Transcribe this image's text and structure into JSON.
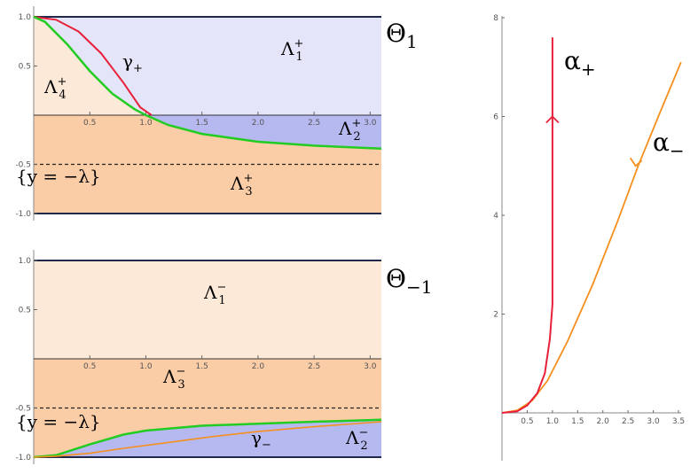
{
  "colors": {
    "region_lavender": "#e4e5f8",
    "region_peach_light": "#fde9d8",
    "region_peach": "#fbcda6",
    "region_blue": "#b6b8f0",
    "curve_red": "#e8203a",
    "curve_green": "#22cc22",
    "curve_orange": "#f5901e",
    "axis": "#888888",
    "boundary": "#20294a"
  },
  "labels": {
    "theta_plus": {
      "base": "Θ",
      "sub": "1"
    },
    "theta_minus": {
      "base": "Θ",
      "sub": "−1"
    },
    "alpha_plus": {
      "base": "α",
      "sub": "+"
    },
    "alpha_minus": {
      "base": "α",
      "sub": "−"
    },
    "gamma_plus": {
      "base": "γ",
      "sub": "+"
    },
    "gamma_minus": {
      "base": "γ",
      "sub": "−"
    },
    "lambda1_plus": {
      "base": "Λ",
      "sub": "1",
      "sup": "+"
    },
    "lambda2_plus": {
      "base": "Λ",
      "sub": "2",
      "sup": "+"
    },
    "lambda3_plus": {
      "base": "Λ",
      "sub": "3",
      "sup": "+"
    },
    "lambda4_plus": {
      "base": "Λ",
      "sub": "4",
      "sup": "+"
    },
    "lambda1_minus": {
      "base": "Λ",
      "sub": "1",
      "sup": "−"
    },
    "lambda2_minus": {
      "base": "Λ",
      "sub": "2",
      "sup": "−"
    },
    "lambda3_minus": {
      "base": "Λ",
      "sub": "3",
      "sup": "−"
    },
    "y_line_top": "{y = −λ}",
    "y_line_bottom": "{y = −λ}"
  },
  "chart_data": [
    {
      "type": "area",
      "panel": "top-left",
      "xlim": [
        0,
        3.1
      ],
      "ylim": [
        -1,
        1
      ],
      "x_ticks": [
        "0.5",
        "1.0",
        "1.5",
        "2.0",
        "2.5",
        "3.0"
      ],
      "y_ticks": [
        "1.0",
        "0.5",
        "-0.5",
        "-1.0"
      ],
      "dashed_line_y": -0.5,
      "series": [
        {
          "name": "γ+",
          "x": [
            0,
            0.2,
            0.4,
            0.6,
            0.8,
            0.95,
            1.05
          ],
          "y": [
            1,
            0.97,
            0.85,
            0.63,
            0.33,
            0.08,
            0
          ]
        },
        {
          "x": [
            0,
            0.1,
            0.3,
            0.5,
            0.7,
            0.9,
            1.0,
            1.2,
            1.5,
            2.0,
            2.5,
            3.1
          ],
          "y": [
            1,
            0.95,
            0.72,
            0.45,
            0.22,
            0.06,
            0,
            -0.1,
            -0.19,
            -0.27,
            -0.31,
            -0.34
          ]
        }
      ]
    },
    {
      "type": "area",
      "panel": "bottom-left",
      "xlim": [
        0,
        3.1
      ],
      "ylim": [
        -1,
        1
      ],
      "x_ticks": [
        "0.5",
        "1.0",
        "1.5",
        "2.0",
        "2.5",
        "3.0"
      ],
      "y_ticks": [
        "1.0",
        "0.5",
        "-0.5",
        "-1.0"
      ],
      "dashed_line_y": -0.5,
      "series": [
        {
          "x": [
            0,
            0.2,
            0.5,
            0.8,
            1.0,
            1.5,
            2.0,
            2.5,
            3.1
          ],
          "y": [
            -1,
            -0.98,
            -0.87,
            -0.77,
            -0.73,
            -0.68,
            -0.66,
            -0.64,
            -0.62
          ]
        },
        {
          "name": "γ−",
          "x": [
            0,
            0.2,
            0.5,
            0.8,
            1.2,
            1.6,
            2.0,
            2.5,
            3.1
          ],
          "y": [
            -1,
            -0.99,
            -0.96,
            -0.91,
            -0.85,
            -0.79,
            -0.74,
            -0.69,
            -0.64
          ]
        }
      ]
    },
    {
      "type": "line",
      "panel": "right",
      "xlim": [
        0,
        3.5
      ],
      "ylim": [
        0,
        8
      ],
      "x_ticks": [
        "0.5",
        "1.0",
        "1.5",
        "2.0",
        "2.5",
        "3.0",
        "3.5"
      ],
      "y_ticks": [
        "2",
        "4",
        "6",
        "8"
      ],
      "series": [
        {
          "name": "α+",
          "x": [
            0,
            0.3,
            0.5,
            0.7,
            0.85,
            0.95,
            1.0,
            1.0,
            1.0
          ],
          "y": [
            0,
            0.03,
            0.15,
            0.4,
            0.8,
            1.5,
            2.2,
            5.0,
            7.6
          ]
        },
        {
          "name": "α−",
          "x": [
            0,
            0.3,
            0.6,
            0.9,
            1.3,
            1.8,
            2.3,
            2.7,
            3.1,
            3.55
          ],
          "y": [
            0,
            0.05,
            0.25,
            0.65,
            1.45,
            2.6,
            3.9,
            5.0,
            6.0,
            7.1
          ]
        }
      ]
    }
  ]
}
